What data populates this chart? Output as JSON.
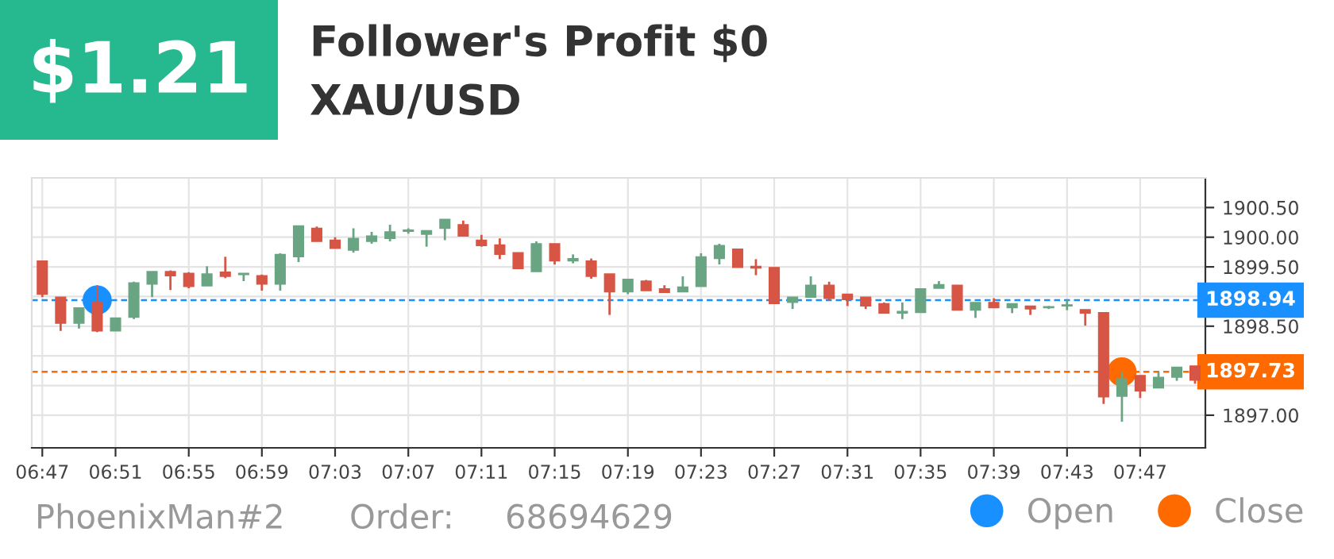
{
  "chart_data": {
    "type": "candlestick",
    "title": "Follower's Profit $0",
    "subtitle": "XAU/USD",
    "annotations": [
      "$1.21",
      "PhoenixMan#2",
      "Order:",
      "68694629"
    ],
    "x": [
      6.7833,
      6.8,
      6.8167,
      6.8333,
      6.85,
      6.8667,
      6.8833,
      6.9,
      6.9167,
      6.9333,
      6.95,
      6.9667,
      6.9833,
      7.0,
      7.0167,
      7.0333,
      7.05,
      7.0667,
      7.0833,
      7.1,
      7.1167,
      7.1333,
      7.15,
      7.1667,
      7.1833,
      7.2,
      7.2167,
      7.2333,
      7.25,
      7.2667,
      7.2833,
      7.3,
      7.3167,
      7.3333,
      7.35,
      7.3667,
      7.3833,
      7.4,
      7.4167,
      7.4333,
      7.45,
      7.4667,
      7.4833,
      7.5,
      7.5167,
      7.5333,
      7.55,
      7.5667,
      7.5833,
      7.6,
      7.6167,
      7.6333,
      7.65,
      7.6667,
      7.6833,
      7.7,
      7.7167,
      7.7333,
      7.75,
      7.7667,
      7.7833,
      7.8,
      7.8167,
      7.8333
    ],
    "ohlc": [
      [
        1899.6,
        1899.6,
        1898.99,
        1899.04
      ],
      [
        1898.99,
        1898.99,
        1898.42,
        1898.55
      ],
      [
        1898.55,
        1898.81,
        1898.46,
        1898.81
      ],
      [
        1898.9,
        1899.19,
        1898.4,
        1898.42
      ],
      [
        1898.42,
        1898.64,
        1898.42,
        1898.64
      ],
      [
        1898.65,
        1899.25,
        1898.62,
        1899.23
      ],
      [
        1899.21,
        1899.42,
        1898.99,
        1899.42
      ],
      [
        1899.42,
        1899.44,
        1899.11,
        1899.35
      ],
      [
        1899.39,
        1899.41,
        1899.14,
        1899.17
      ],
      [
        1899.18,
        1899.51,
        1899.18,
        1899.38
      ],
      [
        1899.41,
        1899.67,
        1899.31,
        1899.34
      ],
      [
        1899.37,
        1899.39,
        1899.26,
        1899.39
      ],
      [
        1899.35,
        1899.37,
        1899.1,
        1899.21
      ],
      [
        1899.21,
        1899.73,
        1899.1,
        1899.71
      ],
      [
        1899.67,
        1900.19,
        1899.58,
        1900.19
      ],
      [
        1900.15,
        1900.18,
        1899.93,
        1899.93
      ],
      [
        1899.95,
        1900.0,
        1899.81,
        1899.81
      ],
      [
        1899.78,
        1900.15,
        1899.74,
        1899.98
      ],
      [
        1899.93,
        1900.09,
        1899.89,
        1900.02
      ],
      [
        1899.98,
        1900.21,
        1899.93,
        1900.09
      ],
      [
        1900.1,
        1900.15,
        1900.06,
        1900.12
      ],
      [
        1900.05,
        1900.11,
        1899.84,
        1900.11
      ],
      [
        1900.15,
        1900.3,
        1899.95,
        1900.3
      ],
      [
        1900.21,
        1900.28,
        1900.02,
        1900.02
      ],
      [
        1899.95,
        1900.04,
        1899.84,
        1899.86
      ],
      [
        1899.87,
        1899.98,
        1899.63,
        1899.71
      ],
      [
        1899.74,
        1899.74,
        1899.47,
        1899.47
      ],
      [
        1899.42,
        1899.93,
        1899.42,
        1899.89
      ],
      [
        1899.89,
        1899.89,
        1899.54,
        1899.6
      ],
      [
        1899.6,
        1899.71,
        1899.56,
        1899.64
      ],
      [
        1899.6,
        1899.64,
        1899.3,
        1899.34
      ],
      [
        1899.38,
        1899.38,
        1898.69,
        1899.08
      ],
      [
        1899.08,
        1899.29,
        1899.04,
        1899.29
      ],
      [
        1899.26,
        1899.28,
        1899.1,
        1899.1
      ],
      [
        1899.13,
        1899.19,
        1899.07,
        1899.07
      ],
      [
        1899.08,
        1899.34,
        1899.08,
        1899.16
      ],
      [
        1899.17,
        1899.73,
        1899.17,
        1899.67
      ],
      [
        1899.64,
        1899.89,
        1899.54,
        1899.86
      ],
      [
        1899.8,
        1899.8,
        1899.49,
        1899.49
      ],
      [
        1899.51,
        1899.63,
        1899.36,
        1899.48
      ],
      [
        1899.49,
        1899.49,
        1898.88,
        1898.88
      ],
      [
        1898.9,
        1898.99,
        1898.79,
        1898.99
      ],
      [
        1898.99,
        1899.34,
        1898.99,
        1899.19
      ],
      [
        1899.19,
        1899.25,
        1898.93,
        1898.97
      ],
      [
        1899.04,
        1899.04,
        1898.84,
        1898.95
      ],
      [
        1898.99,
        1898.99,
        1898.79,
        1898.84
      ],
      [
        1898.88,
        1898.9,
        1898.72,
        1898.72
      ],
      [
        1898.72,
        1898.9,
        1898.62,
        1898.75
      ],
      [
        1898.73,
        1899.13,
        1898.73,
        1899.13
      ],
      [
        1899.14,
        1899.26,
        1899.14,
        1899.2
      ],
      [
        1899.19,
        1899.19,
        1898.77,
        1898.77
      ],
      [
        1898.77,
        1898.9,
        1898.64,
        1898.9
      ],
      [
        1898.9,
        1898.97,
        1898.81,
        1898.81
      ],
      [
        1898.81,
        1898.88,
        1898.72,
        1898.88
      ],
      [
        1898.84,
        1898.84,
        1898.69,
        1898.79
      ],
      [
        1898.81,
        1898.84,
        1898.79,
        1898.83
      ],
      [
        1898.84,
        1898.94,
        1898.77,
        1898.86
      ],
      [
        1898.78,
        1898.78,
        1898.51,
        1898.72
      ],
      [
        1898.73,
        1898.73,
        1897.19,
        1897.31
      ],
      [
        1897.32,
        1897.73,
        1896.89,
        1897.61
      ],
      [
        1897.67,
        1897.67,
        1897.29,
        1897.41
      ],
      [
        1897.46,
        1897.73,
        1897.46,
        1897.64
      ],
      [
        1897.64,
        1897.81,
        1897.58,
        1897.81
      ],
      [
        1897.83,
        1897.83,
        1897.53,
        1897.59
      ]
    ],
    "colors": [
      "#d65544",
      "#d65544",
      "#6aa583",
      "#d65544",
      "#6aa583",
      "#6aa583",
      "#6aa583",
      "#d65544",
      "#d65544",
      "#6aa583",
      "#d65544",
      "#6aa583",
      "#d65544",
      "#6aa583",
      "#6aa583",
      "#d65544",
      "#d65544",
      "#6aa583",
      "#6aa583",
      "#6aa583",
      "#6aa583",
      "#6aa583",
      "#6aa583",
      "#d65544",
      "#d65544",
      "#d65544",
      "#d65544",
      "#6aa583",
      "#d65544",
      "#6aa583",
      "#d65544",
      "#d65544",
      "#6aa583",
      "#d65544",
      "#d65544",
      "#6aa583",
      "#6aa583",
      "#6aa583",
      "#d65544",
      "#d65544",
      "#d65544",
      "#6aa583",
      "#6aa583",
      "#d65544",
      "#d65544",
      "#d65544",
      "#d65544",
      "#6aa583",
      "#6aa583",
      "#6aa583",
      "#d65544",
      "#6aa583",
      "#d65544",
      "#6aa583",
      "#d65544",
      "#6aa583",
      "#6aa583",
      "#d65544",
      "#d65544",
      "#6aa583",
      "#d65544",
      "#6aa583",
      "#6aa583",
      "#d65544"
    ],
    "series": [
      {
        "name": "Open",
        "type": "scatter",
        "color": "#1890ff",
        "x": [
          6.8333
        ],
        "values": [
          1898.94
        ]
      },
      {
        "name": "Close",
        "type": "scatter",
        "color": "#ff6a00",
        "x": [
          7.7667
        ],
        "values": [
          1897.73
        ]
      }
    ],
    "ref_lines": [
      {
        "axis": "y",
        "value": 1898.94,
        "label": "1898.94",
        "color": "#1890ff",
        "line_style": "dashed"
      },
      {
        "axis": "y",
        "value": 1897.73,
        "label": "1897.73",
        "color": "#ff6a00",
        "line_style": "dashed"
      }
    ],
    "xlim": [
      6.7737,
      7.8427
    ],
    "xticks": [
      {
        "value": 6.7833,
        "label": "06:47"
      },
      {
        "value": 6.85,
        "label": "06:51"
      },
      {
        "value": 6.9167,
        "label": "06:55"
      },
      {
        "value": 6.9833,
        "label": "06:59"
      },
      {
        "value": 7.05,
        "label": "07:03"
      },
      {
        "value": 7.1167,
        "label": "07:07"
      },
      {
        "value": 7.1833,
        "label": "07:11"
      },
      {
        "value": 7.25,
        "label": "07:15"
      },
      {
        "value": 7.3167,
        "label": "07:19"
      },
      {
        "value": 7.3833,
        "label": "07:23"
      },
      {
        "value": 7.45,
        "label": "07:27"
      },
      {
        "value": 7.5167,
        "label": "07:31"
      },
      {
        "value": 7.5833,
        "label": "07:35"
      },
      {
        "value": 7.65,
        "label": "07:39"
      },
      {
        "value": 7.7167,
        "label": "07:43"
      },
      {
        "value": 7.7833,
        "label": "07:47"
      }
    ],
    "ylim": [
      1896.45,
      1901.0
    ],
    "yticks": [
      {
        "value": 1897.0,
        "label": "1897.00"
      },
      {
        "value": 1897.5,
        "label": null
      },
      {
        "value": 1898.0,
        "label": null
      },
      {
        "value": 1898.5,
        "label": "1898.50"
      },
      {
        "value": 1899.0,
        "label": null
      },
      {
        "value": 1899.5,
        "label": "1899.50"
      },
      {
        "value": 1900.0,
        "label": "1900.00"
      },
      {
        "value": 1900.5,
        "label": "1900.50"
      }
    ],
    "grid": true,
    "legend": "bottom right",
    "marker": "circle"
  }
}
